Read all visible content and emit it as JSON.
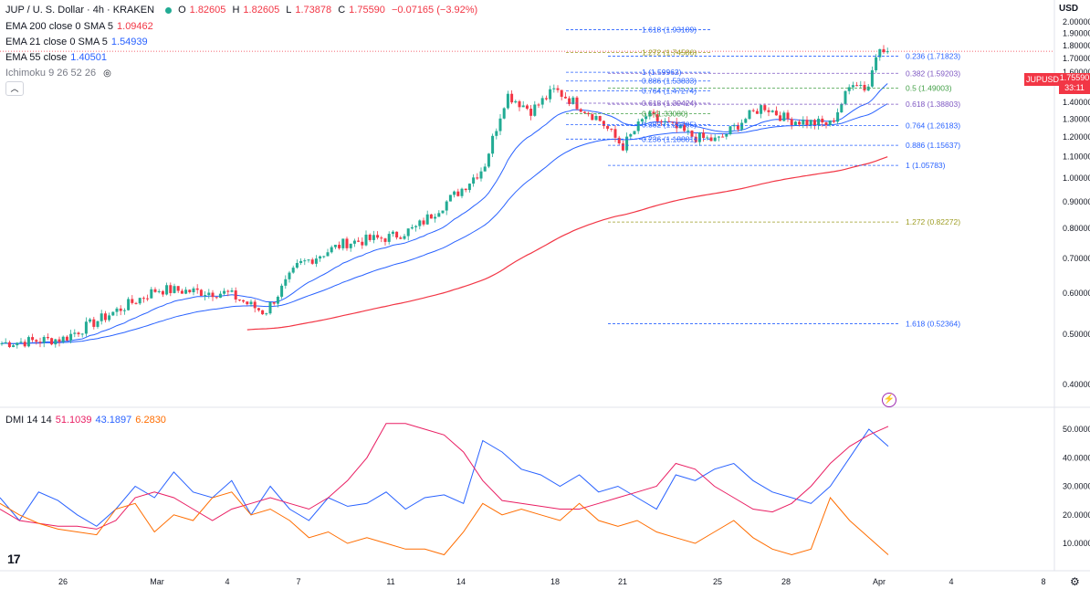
{
  "header": {
    "symbol": "JUP / U. S. Dollar · 4h · KRAKEN",
    "ohlc": {
      "o_label": "O",
      "o": "1.82605",
      "h_label": "H",
      "h": "1.82605",
      "l_label": "L",
      "l": "1.73878",
      "c_label": "C",
      "c": "1.75590",
      "change": "−0.07165 (−3.92%)"
    },
    "indicators": [
      {
        "label": "EMA 200 close 0 SMA 5",
        "value": "1.09462",
        "color": "#f23645"
      },
      {
        "label": "EMA 21 close 0 SMA 5",
        "value": "1.54939",
        "color": "#2962ff"
      },
      {
        "label": "EMA 55 close",
        "value": "1.40501",
        "color": "#2962ff"
      },
      {
        "label": "Ichimoku 9 26 52 26",
        "value": "",
        "color": "#131722"
      }
    ],
    "collapse_icon": "chevron-up-icon"
  },
  "currency": "USD",
  "price_tag": {
    "symbol": "JUPUSD",
    "price": "1.75590",
    "countdown": "33:11",
    "color": "#f23645"
  },
  "dmi_label": {
    "label": "DMI 14 14",
    "v1": "51.1039",
    "v2": "43.1897",
    "v3": "6.2830"
  },
  "logo": "17",
  "chart_data": [
    {
      "type": "candlestick",
      "title": "JUP / U. S. Dollar · 4h · KRAKEN",
      "y_scale": "log",
      "ylim": [
        0.38,
        2.0
      ],
      "y_ticks": [
        "2.00000",
        "1.90000",
        "1.80000",
        "1.70000",
        "1.60000",
        "1.50000",
        "1.40000",
        "1.30000",
        "1.20000",
        "1.10000",
        "1.00000",
        "0.90000",
        "0.80000",
        "0.70000",
        "0.60000",
        "0.50000",
        "0.40000"
      ],
      "x_ticks": [
        "26",
        "Mar",
        "4",
        "7",
        "11",
        "14",
        "18",
        "21",
        "25",
        "28",
        "Apr",
        "4",
        "8"
      ],
      "colors": {
        "up": "#22ab94",
        "down": "#f23645"
      },
      "approx_daily_closes": [
        {
          "x": "Feb 23",
          "y": 0.48
        },
        {
          "x": "Feb 26",
          "y": 0.49
        },
        {
          "x": "Mar 1",
          "y": 0.61
        },
        {
          "x": "Mar 4",
          "y": 0.6
        },
        {
          "x": "Mar 6",
          "y": 0.55
        },
        {
          "x": "Mar 7",
          "y": 0.68
        },
        {
          "x": "Mar 9",
          "y": 0.75
        },
        {
          "x": "Mar 11",
          "y": 0.77
        },
        {
          "x": "Mar 12",
          "y": 0.8
        },
        {
          "x": "Mar 14",
          "y": 0.95
        },
        {
          "x": "Mar 15",
          "y": 1.05
        },
        {
          "x": "Mar 16",
          "y": 1.45
        },
        {
          "x": "Mar 17",
          "y": 1.35
        },
        {
          "x": "Mar 18",
          "y": 1.48
        },
        {
          "x": "Mar 19",
          "y": 1.3
        },
        {
          "x": "Mar 20",
          "y": 1.15
        },
        {
          "x": "Mar 21",
          "y": 1.32
        },
        {
          "x": "Mar 22",
          "y": 1.26
        },
        {
          "x": "Mar 23",
          "y": 1.2
        },
        {
          "x": "Mar 24",
          "y": 1.18
        },
        {
          "x": "Mar 25",
          "y": 1.28
        },
        {
          "x": "Mar 26",
          "y": 1.38
        },
        {
          "x": "Mar 27",
          "y": 1.3
        },
        {
          "x": "Mar 28",
          "y": 1.28
        },
        {
          "x": "Mar 29",
          "y": 1.27
        },
        {
          "x": "Mar 30",
          "y": 1.55
        },
        {
          "x": "Mar 31",
          "y": 1.48
        },
        {
          "x": "Apr 1",
          "y": 1.82
        },
        {
          "x": "Apr 1 (last)",
          "y": 1.7559
        }
      ],
      "ema_200": {
        "name": "EMA 200",
        "color": "#f23645",
        "last": 1.09462
      },
      "ema_21": {
        "name": "EMA 21",
        "color": "#2962ff",
        "last": 1.54939
      },
      "ema_55": {
        "name": "EMA 55",
        "color": "#2962ff",
        "last": 1.40501
      },
      "fib_upper": [
        {
          "label": "1.618 (1.93189)",
          "color": "#2962ff"
        },
        {
          "label": "1.272 (1.74586)",
          "color": "#9e9d24"
        },
        {
          "label": "1 (1.59962)",
          "color": "#2962ff"
        },
        {
          "label": "0.886 (1.53833)",
          "color": "#2962ff"
        },
        {
          "label": "0.764 (1.47274)",
          "color": "#2962ff"
        },
        {
          "label": "0.618 (1.39424)",
          "color": "#7e57c2"
        },
        {
          "label": "0.5 (1.33080)",
          "color": "#43a047"
        },
        {
          "label": "0.382 (1.26735)",
          "color": "#2962ff"
        },
        {
          "label": "0.236 (1.18881)",
          "color": "#2962ff"
        }
      ],
      "fib_right": [
        {
          "label": "0.236 (1.71823)",
          "color": "#2962ff"
        },
        {
          "label": "0.382 (1.59203)",
          "color": "#7e57c2"
        },
        {
          "label": "0.5 (1.49003)",
          "color": "#43a047"
        },
        {
          "label": "0.618 (1.38803)",
          "color": "#7e57c2"
        },
        {
          "label": "0.764 (1.26183)",
          "color": "#2962ff"
        },
        {
          "label": "0.886 (1.15637)",
          "color": "#2962ff"
        },
        {
          "label": "1 (1.05783)",
          "color": "#2962ff"
        },
        {
          "label": "1.272 (0.82272)",
          "color": "#9e9d24"
        },
        {
          "label": "1.618 (0.52364)",
          "color": "#2962ff"
        }
      ]
    },
    {
      "type": "line",
      "title": "DMI 14 14",
      "ylim": [
        0,
        55
      ],
      "y_ticks": [
        "50.0000",
        "40.0000",
        "30.0000",
        "20.0000",
        "10.0000"
      ],
      "series": [
        {
          "name": "+DI",
          "color": "#2962ff",
          "values": [
            26,
            18,
            28,
            25,
            20,
            16,
            22,
            30,
            26,
            35,
            28,
            26,
            32,
            20,
            30,
            22,
            18,
            26,
            23,
            24,
            28,
            22,
            26,
            27,
            24,
            46,
            42,
            36,
            34,
            30,
            34,
            28,
            30,
            26,
            22,
            34,
            32,
            36,
            38,
            32,
            28,
            26,
            24,
            30,
            40,
            50,
            44
          ]
        },
        {
          "name": "ADX",
          "color": "#e91e63",
          "values": [
            22,
            18,
            17,
            16,
            16,
            15,
            18,
            26,
            28,
            26,
            22,
            18,
            22,
            24,
            26,
            24,
            22,
            26,
            32,
            40,
            52,
            52,
            50,
            48,
            42,
            32,
            25,
            24,
            23,
            22,
            22,
            24,
            26,
            28,
            30,
            38,
            36,
            30,
            26,
            22,
            21,
            24,
            30,
            38,
            44,
            48,
            51
          ]
        },
        {
          "name": "−DI",
          "color": "#ff6d00",
          "values": [
            24,
            20,
            17,
            15,
            14,
            13,
            22,
            24,
            14,
            20,
            18,
            26,
            28,
            20,
            22,
            18,
            12,
            14,
            10,
            12,
            10,
            8,
            8,
            6,
            14,
            24,
            20,
            22,
            20,
            18,
            24,
            18,
            16,
            18,
            14,
            12,
            10,
            14,
            18,
            12,
            8,
            6,
            8,
            26,
            18,
            12,
            6
          ]
        }
      ]
    }
  ]
}
